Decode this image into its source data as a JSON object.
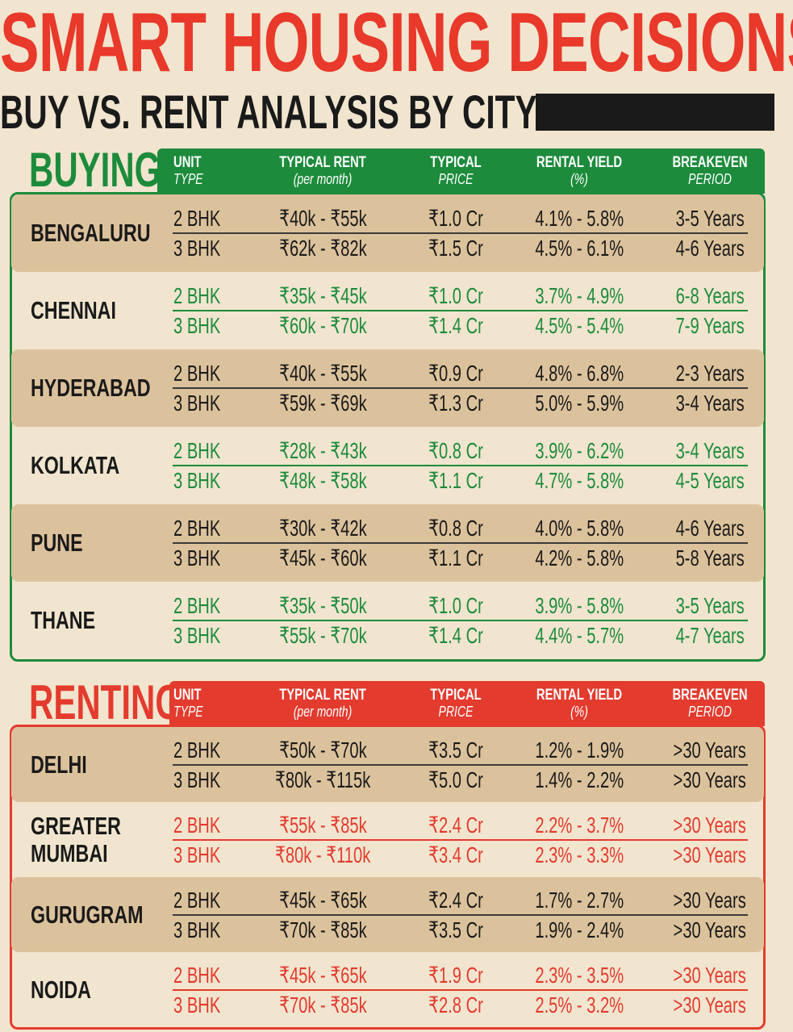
{
  "header": {
    "title": "SMART HOUSING DECISIONS",
    "subtitle": "BUY VS. RENT ANALYSIS BY CITY"
  },
  "sections": [
    {
      "label": "BUYING",
      "columns": [
        [
          "UNIT",
          "TYPE"
        ],
        [
          "TYPICAL RENT",
          "(per month)"
        ],
        [
          "TYPICAL",
          "PRICE"
        ],
        [
          "RENTAL YIELD",
          "(%)"
        ],
        [
          "BREAKEVEN",
          "PERIOD"
        ]
      ],
      "cities": [
        {
          "name": "BENGALURU",
          "rows": [
            [
              "2 BHK",
              "₹40k - ₹55k",
              "₹1.0 Cr",
              "4.1% - 5.8%",
              "3-5 Years"
            ],
            [
              "3 BHK",
              "₹62k - ₹82k",
              "₹1.5 Cr",
              "4.5% - 6.1%",
              "4-6 Years"
            ]
          ]
        },
        {
          "name": "CHENNAI",
          "rows": [
            [
              "2 BHK",
              "₹35k - ₹45k",
              "₹1.0 Cr",
              "3.7% - 4.9%",
              "6-8 Years"
            ],
            [
              "3 BHK",
              "₹60k - ₹70k",
              "₹1.4 Cr",
              "4.5% - 5.4%",
              "7-9 Years"
            ]
          ]
        },
        {
          "name": "HYDERABAD",
          "rows": [
            [
              "2 BHK",
              "₹40k - ₹55k",
              "₹0.9 Cr",
              "4.8% - 6.8%",
              "2-3 Years"
            ],
            [
              "3 BHK",
              "₹59k - ₹69k",
              "₹1.3 Cr",
              "5.0% - 5.9%",
              "3-4 Years"
            ]
          ]
        },
        {
          "name": "KOLKATA",
          "rows": [
            [
              "2 BHK",
              "₹28k - ₹43k",
              "₹0.8 Cr",
              "3.9% - 6.2%",
              "3-4 Years"
            ],
            [
              "3 BHK",
              "₹48k - ₹58k",
              "₹1.1 Cr",
              "4.7% - 5.8%",
              "4-5 Years"
            ]
          ]
        },
        {
          "name": "PUNE",
          "rows": [
            [
              "2 BHK",
              "₹30k - ₹42k",
              "₹0.8 Cr",
              "4.0% - 5.8%",
              "4-6 Years"
            ],
            [
              "3 BHK",
              "₹45k - ₹60k",
              "₹1.1 Cr",
              "4.2% - 5.8%",
              "5-8 Years"
            ]
          ]
        },
        {
          "name": "THANE",
          "rows": [
            [
              "2 BHK",
              "₹35k - ₹50k",
              "₹1.0 Cr",
              "3.9% - 5.8%",
              "3-5 Years"
            ],
            [
              "3 BHK",
              "₹55k - ₹70k",
              "₹1.4 Cr",
              "4.4% - 5.7%",
              "4-7 Years"
            ]
          ]
        }
      ]
    },
    {
      "label": "RENTING",
      "columns": [
        [
          "UNIT",
          "TYPE"
        ],
        [
          "TYPICAL RENT",
          "(per month)"
        ],
        [
          "TYPICAL",
          "PRICE"
        ],
        [
          "RENTAL YIELD",
          "(%)"
        ],
        [
          "BREAKEVEN",
          "PERIOD"
        ]
      ],
      "cities": [
        {
          "name": "DELHI",
          "rows": [
            [
              "2 BHK",
              "₹50k - ₹70k",
              "₹3.5 Cr",
              "1.2% - 1.9%",
              ">30 Years"
            ],
            [
              "3 BHK",
              "₹80k - ₹115k",
              "₹5.0 Cr",
              "1.4% - 2.2%",
              ">30 Years"
            ]
          ]
        },
        {
          "name": "GREATER MUMBAI",
          "rows": [
            [
              "2 BHK",
              "₹55k - ₹85k",
              "₹2.4 Cr",
              "2.2% - 3.7%",
              ">30 Years"
            ],
            [
              "3 BHK",
              "₹80k - ₹110k",
              "₹3.4 Cr",
              "2.3% - 3.3%",
              ">30 Years"
            ]
          ]
        },
        {
          "name": "GURUGRAM",
          "rows": [
            [
              "2 BHK",
              "₹45k - ₹65k",
              "₹2.4 Cr",
              "1.7% - 2.7%",
              ">30 Years"
            ],
            [
              "3 BHK",
              "₹70k - ₹85k",
              "₹3.5 Cr",
              "1.9% - 2.4%",
              ">30 Years"
            ]
          ]
        },
        {
          "name": "NOIDA",
          "rows": [
            [
              "2 BHK",
              "₹45k - ₹65k",
              "₹1.9 Cr",
              "2.3% - 3.5%",
              ">30 Years"
            ],
            [
              "3 BHK",
              "₹70k - ₹85k",
              "₹2.8 Cr",
              "2.5% - 3.2%",
              ">30 Years"
            ]
          ]
        }
      ]
    }
  ]
}
